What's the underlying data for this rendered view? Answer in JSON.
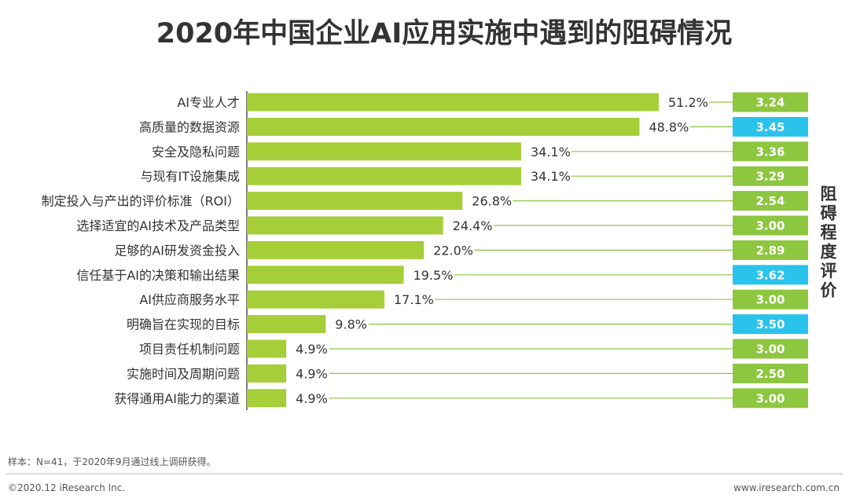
{
  "page": {
    "title": "2020年中国企业AI应用实施中遇到的阻碍情况",
    "side_label": "阻碍程度评价",
    "footnote": "样本：N=41，于2020年9月通过线上调研获得。",
    "copyright": "©2020.12 iResearch Inc.",
    "website": "www.iresearch.com.cn"
  },
  "colors": {
    "bar": "#a6ce39",
    "score_green": "#8dc63f",
    "score_blue": "#29c3ec",
    "text": "#333333",
    "axis": "#333333"
  },
  "chart_data": {
    "type": "bar",
    "orientation": "horizontal",
    "title": "2020年中国企业AI应用实施中遇到的阻碍情况",
    "categories": [
      "AI专业人才",
      "高质量的数据资源",
      "安全及隐私问题",
      "与现有IT设施集成",
      "制定投入与产出的评价标准（ROI）",
      "选择适宜的AI技术及产品类型",
      "足够的AI研发资金投入",
      "信任基于AI的决策和输出结果",
      "AI供应商服务水平",
      "明确旨在实现的目标",
      "项目责任机制问题",
      "实施时间及周期问题",
      "获得通用AI能力的渠道"
    ],
    "values": [
      51.2,
      48.8,
      34.1,
      34.1,
      26.8,
      24.4,
      22.0,
      19.5,
      17.1,
      9.8,
      4.9,
      4.9,
      4.9
    ],
    "value_labels": [
      "51.2%",
      "48.8%",
      "34.1%",
      "34.1%",
      "26.8%",
      "24.4%",
      "22.0%",
      "19.5%",
      "17.1%",
      "9.8%",
      "4.9%",
      "4.9%",
      "4.9%"
    ],
    "score_label": "阻碍程度评价",
    "scores": [
      "3.24",
      "3.45",
      "3.36",
      "3.29",
      "2.54",
      "3.00",
      "2.89",
      "3.62",
      "3.00",
      "3.50",
      "3.00",
      "2.50",
      "3.00"
    ],
    "score_highlight": [
      false,
      true,
      false,
      false,
      false,
      false,
      false,
      true,
      false,
      true,
      false,
      false,
      false
    ],
    "xlim": [
      0,
      51.2
    ],
    "grid": false,
    "legend": "none"
  }
}
